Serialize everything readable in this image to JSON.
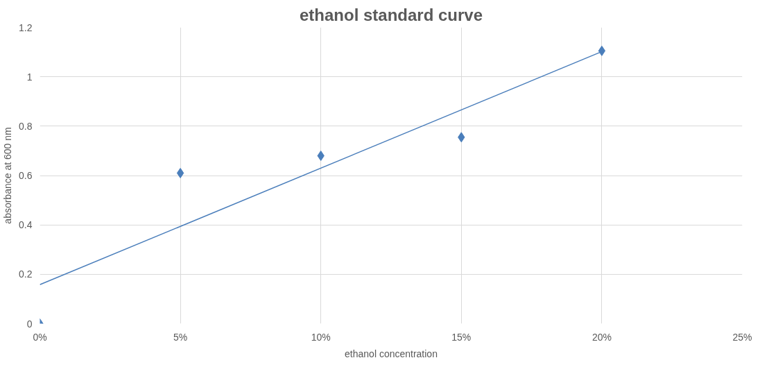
{
  "chart_data": {
    "type": "scatter",
    "title": "ethanol standard curve",
    "xlabel": "ethanol concentration",
    "ylabel": "absorbance at 600 nm",
    "series": [
      {
        "color": "#4a7ebb",
        "x": [
          0,
          5,
          10,
          15,
          20
        ],
        "values": [
          0,
          0.61,
          0.68,
          0.755,
          1.105
        ],
        "marker": "diamond"
      },
      {
        "type": "line",
        "color": "#4a7ebb",
        "x": [
          0,
          20
        ],
        "values": [
          0.158,
          1.102
        ],
        "marker": "none",
        "line_style": "solid"
      }
    ],
    "xlim": [
      0,
      25
    ],
    "xticks": [
      {
        "value": 0,
        "label": "0%"
      },
      {
        "value": 5,
        "label": "5%"
      },
      {
        "value": 10,
        "label": "10%"
      },
      {
        "value": 15,
        "label": "15%"
      },
      {
        "value": 20,
        "label": "20%"
      },
      {
        "value": 25,
        "label": "25%"
      }
    ],
    "ylim": [
      0,
      1.2
    ],
    "yticks": [
      0,
      {
        "value": 0.2,
        "label": "0.2"
      },
      {
        "value": 0.4,
        "label": "0.4"
      },
      {
        "value": 0.6,
        "label": "0.6"
      },
      {
        "value": 0.8,
        "label": "0.8"
      },
      1,
      {
        "value": 1.2,
        "label": "1.2"
      }
    ],
    "grid": true
  }
}
